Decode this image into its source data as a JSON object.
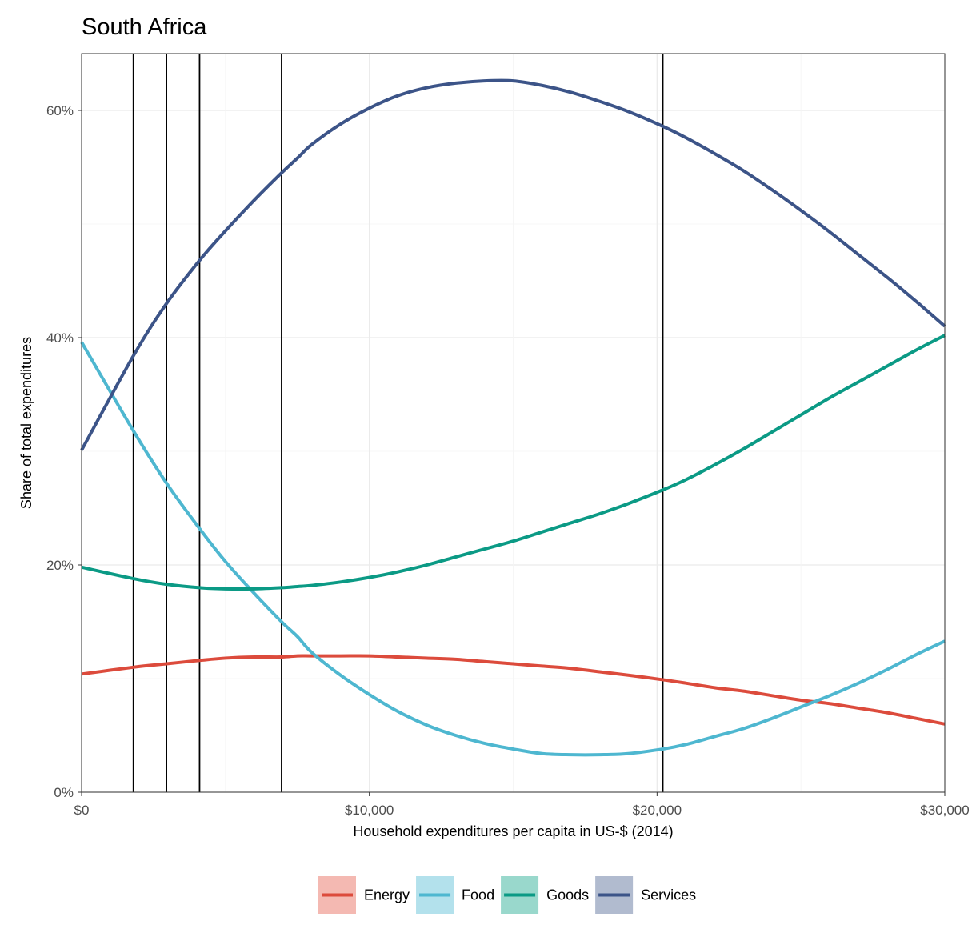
{
  "chart_data": {
    "type": "line",
    "title": "South Africa",
    "xlabel": "Household expenditures per capita in US-$ (2014)",
    "ylabel": "Share of total expenditures",
    "xlim": [
      0,
      30000
    ],
    "ylim": [
      0,
      0.65
    ],
    "x_ticks": [
      {
        "value": 0,
        "label": "$0"
      },
      {
        "value": 10000,
        "label": "$10,000"
      },
      {
        "value": 20000,
        "label": "$20,000"
      },
      {
        "value": 30000,
        "label": "$30,000"
      }
    ],
    "y_ticks": [
      {
        "value": 0,
        "label": "0%"
      },
      {
        "value": 0.2,
        "label": "20%"
      },
      {
        "value": 0.4,
        "label": "40%"
      },
      {
        "value": 0.6,
        "label": "60%"
      }
    ],
    "grid": true,
    "legend_position": "bottom",
    "vertical_lines_x": [
      1800,
      2950,
      4100,
      6950,
      20200
    ],
    "x": [
      0,
      1800,
      2950,
      4100,
      5000,
      6000,
      6950,
      7500,
      8000,
      9000,
      10000,
      11000,
      12000,
      13000,
      14000,
      15000,
      16000,
      17000,
      18000,
      19000,
      20200,
      21000,
      22000,
      23000,
      24000,
      25000,
      26000,
      27000,
      28000,
      29000,
      30000
    ],
    "series": [
      {
        "name": "Energy",
        "color": "#dc4b3c",
        "legend_fill": "#f4b9b2",
        "values": [
          0.104,
          0.11,
          0.113,
          0.116,
          0.118,
          0.119,
          0.119,
          0.12,
          0.12,
          0.12,
          0.12,
          0.119,
          0.118,
          0.117,
          0.115,
          0.113,
          0.111,
          0.109,
          0.106,
          0.103,
          0.099,
          0.096,
          0.092,
          0.089,
          0.085,
          0.081,
          0.078,
          0.074,
          0.07,
          0.065,
          0.06
        ]
      },
      {
        "name": "Food",
        "color": "#4eb7d0",
        "legend_fill": "#b3e1ec",
        "values": [
          0.396,
          0.318,
          0.272,
          0.232,
          0.203,
          0.175,
          0.15,
          0.137,
          0.123,
          0.103,
          0.086,
          0.071,
          0.059,
          0.05,
          0.043,
          0.038,
          0.034,
          0.033,
          0.033,
          0.034,
          0.038,
          0.042,
          0.049,
          0.056,
          0.065,
          0.075,
          0.085,
          0.096,
          0.108,
          0.121,
          0.133
        ]
      },
      {
        "name": "Goods",
        "color": "#0b9a85",
        "legend_fill": "#99d8cc",
        "values": [
          0.198,
          0.188,
          0.183,
          0.18,
          0.179,
          0.179,
          0.18,
          0.181,
          0.182,
          0.185,
          0.189,
          0.194,
          0.2,
          0.207,
          0.214,
          0.221,
          0.229,
          0.237,
          0.245,
          0.254,
          0.266,
          0.275,
          0.288,
          0.302,
          0.317,
          0.332,
          0.347,
          0.361,
          0.375,
          0.389,
          0.402
        ]
      },
      {
        "name": "Services",
        "color": "#3c5488",
        "legend_fill": "#b1bbcf",
        "values": [
          0.301,
          0.384,
          0.43,
          0.468,
          0.494,
          0.521,
          0.545,
          0.558,
          0.57,
          0.588,
          0.602,
          0.613,
          0.62,
          0.624,
          0.626,
          0.626,
          0.622,
          0.616,
          0.608,
          0.599,
          0.586,
          0.576,
          0.562,
          0.547,
          0.53,
          0.512,
          0.493,
          0.473,
          0.453,
          0.432,
          0.41
        ]
      }
    ]
  }
}
